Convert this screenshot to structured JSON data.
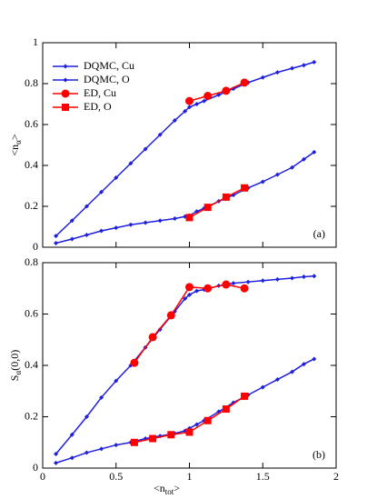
{
  "chart_data": [
    {
      "type": "line",
      "ylabel": {
        "main": "<n",
        "sub": "α",
        "end": ">"
      },
      "annotation": "(a)",
      "xlim": [
        0,
        2
      ],
      "ylim": [
        0,
        1
      ],
      "yticks": [
        0,
        0.2,
        0.4,
        0.6,
        0.8,
        1
      ],
      "legend": "upper left",
      "series": [
        {
          "name": "DQMC, Cu",
          "color": "#1f1fe0",
          "marker": "diamond",
          "x": [
            0.09,
            0.2,
            0.3,
            0.4,
            0.5,
            0.6,
            0.7,
            0.8,
            0.9,
            0.97,
            1.0,
            1.05,
            1.1,
            1.2,
            1.3,
            1.4,
            1.5,
            1.6,
            1.7,
            1.78,
            1.85
          ],
          "values": [
            0.055,
            0.13,
            0.2,
            0.27,
            0.34,
            0.41,
            0.48,
            0.55,
            0.62,
            0.665,
            0.685,
            0.7,
            0.715,
            0.745,
            0.775,
            0.805,
            0.83,
            0.855,
            0.875,
            0.89,
            0.905
          ]
        },
        {
          "name": "DQMC, O",
          "color": "#1f1fe0",
          "marker": "diamond",
          "x": [
            0.09,
            0.2,
            0.3,
            0.4,
            0.5,
            0.6,
            0.7,
            0.8,
            0.9,
            0.97,
            1.0,
            1.05,
            1.1,
            1.2,
            1.3,
            1.4,
            1.5,
            1.6,
            1.7,
            1.78,
            1.85
          ],
          "values": [
            0.02,
            0.04,
            0.06,
            0.08,
            0.095,
            0.11,
            0.12,
            0.13,
            0.14,
            0.15,
            0.155,
            0.175,
            0.19,
            0.225,
            0.255,
            0.29,
            0.32,
            0.355,
            0.39,
            0.43,
            0.465
          ]
        },
        {
          "name": "ED, Cu",
          "color": "#ff0000",
          "marker": "circle",
          "x": [
            1.0,
            1.125,
            1.25,
            1.375
          ],
          "values": [
            0.715,
            0.74,
            0.765,
            0.805
          ]
        },
        {
          "name": "ED, O",
          "color": "#ff0000",
          "marker": "square",
          "x": [
            1.0,
            1.125,
            1.25,
            1.375
          ],
          "values": [
            0.145,
            0.195,
            0.245,
            0.29
          ]
        }
      ]
    },
    {
      "type": "line",
      "ylabel": {
        "main": "S",
        "sub": "α",
        "end": "(0,0)"
      },
      "xlabel": {
        "main": "<n",
        "sub": "tot",
        "end": ">"
      },
      "annotation": "(b)",
      "xlim": [
        0,
        2
      ],
      "xticks": [
        0,
        0.5,
        1,
        1.5,
        2
      ],
      "ylim": [
        0,
        0.8
      ],
      "yticks": [
        0,
        0.2,
        0.4,
        0.6,
        0.8
      ],
      "series": [
        {
          "color": "#1f1fe0",
          "marker": "diamond",
          "x": [
            0.09,
            0.2,
            0.3,
            0.4,
            0.5,
            0.6,
            0.7,
            0.8,
            0.9,
            0.97,
            1.0,
            1.05,
            1.1,
            1.2,
            1.3,
            1.4,
            1.5,
            1.6,
            1.7,
            1.78,
            1.85
          ],
          "values": [
            0.055,
            0.13,
            0.2,
            0.275,
            0.34,
            0.4,
            0.47,
            0.54,
            0.61,
            0.66,
            0.675,
            0.69,
            0.695,
            0.71,
            0.72,
            0.725,
            0.73,
            0.735,
            0.74,
            0.745,
            0.748
          ]
        },
        {
          "color": "#1f1fe0",
          "marker": "diamond",
          "x": [
            0.09,
            0.2,
            0.3,
            0.4,
            0.5,
            0.6,
            0.7,
            0.8,
            0.9,
            0.97,
            1.0,
            1.05,
            1.1,
            1.2,
            1.3,
            1.4,
            1.5,
            1.6,
            1.7,
            1.78,
            1.85
          ],
          "values": [
            0.02,
            0.04,
            0.06,
            0.075,
            0.09,
            0.1,
            0.115,
            0.125,
            0.135,
            0.145,
            0.155,
            0.17,
            0.185,
            0.22,
            0.255,
            0.285,
            0.315,
            0.345,
            0.375,
            0.405,
            0.425
          ]
        },
        {
          "color": "#ff0000",
          "marker": "circle",
          "x": [
            0.625,
            0.75,
            0.875,
            1.0,
            1.125,
            1.25,
            1.375
          ],
          "values": [
            0.41,
            0.51,
            0.595,
            0.705,
            0.7,
            0.715,
            0.7
          ]
        },
        {
          "color": "#ff0000",
          "marker": "square",
          "x": [
            0.625,
            0.75,
            0.875,
            1.0,
            1.125,
            1.25,
            1.375
          ],
          "values": [
            0.1,
            0.115,
            0.13,
            0.14,
            0.185,
            0.23,
            0.28
          ]
        }
      ]
    }
  ]
}
